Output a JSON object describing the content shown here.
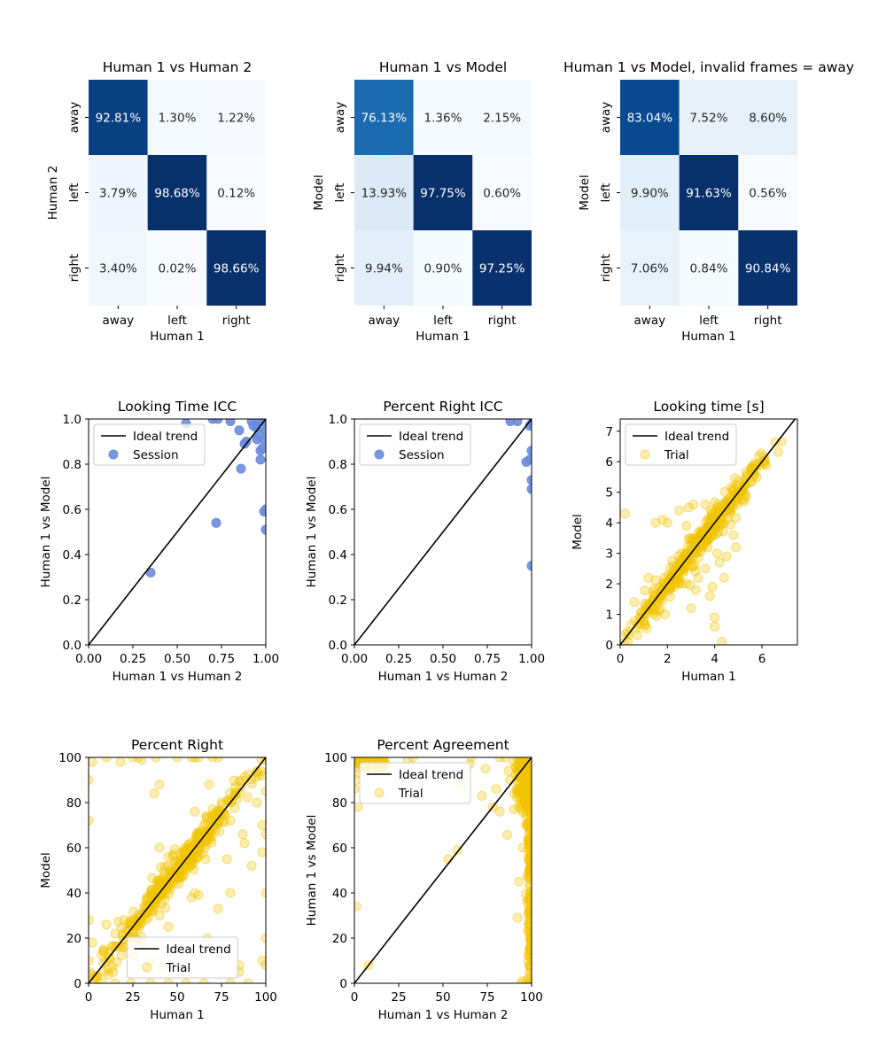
{
  "colors": {
    "blues": [
      "#f7fbff",
      "#deebf7",
      "#c6dbef",
      "#9ecae1",
      "#6baed6",
      "#4292c6",
      "#2171b5",
      "#08519c",
      "#08306b"
    ],
    "session": "#6b8bdc",
    "trial": "#f2c500",
    "ideal": "#000000"
  },
  "chart_data": [
    {
      "type": "heatmap",
      "title": "Human 1 vs Human 2",
      "xlabel": "Human 1",
      "ylabel": "Human 2",
      "x_categories": [
        "away",
        "left",
        "right"
      ],
      "y_categories": [
        "away",
        "left",
        "right"
      ],
      "values": [
        [
          92.81,
          1.3,
          1.22
        ],
        [
          3.79,
          98.68,
          0.12
        ],
        [
          3.4,
          0.02,
          98.66
        ]
      ],
      "labels": [
        [
          "92.81%",
          "1.30%",
          "1.22%"
        ],
        [
          "3.79%",
          "98.68%",
          "0.12%"
        ],
        [
          "3.40%",
          "0.02%",
          "98.66%"
        ]
      ]
    },
    {
      "type": "heatmap",
      "title": "Human 1 vs Model",
      "xlabel": "Human 1",
      "ylabel": "Model",
      "x_categories": [
        "away",
        "left",
        "right"
      ],
      "y_categories": [
        "away",
        "left",
        "right"
      ],
      "values": [
        [
          76.13,
          1.36,
          2.15
        ],
        [
          13.93,
          97.75,
          0.6
        ],
        [
          9.94,
          0.9,
          97.25
        ]
      ],
      "labels": [
        [
          "76.13%",
          "1.36%",
          "2.15%"
        ],
        [
          "13.93%",
          "97.75%",
          "0.60%"
        ],
        [
          "9.94%",
          "0.90%",
          "97.25%"
        ]
      ]
    },
    {
      "type": "heatmap",
      "title": "Human 1 vs Model, invalid frames = away",
      "xlabel": "Human 1",
      "ylabel": "Model",
      "x_categories": [
        "away",
        "left",
        "right"
      ],
      "y_categories": [
        "away",
        "left",
        "right"
      ],
      "values": [
        [
          83.04,
          7.52,
          8.6
        ],
        [
          9.9,
          91.63,
          0.56
        ],
        [
          7.06,
          0.84,
          90.84
        ]
      ],
      "labels": [
        [
          "83.04%",
          "7.52%",
          "8.60%"
        ],
        [
          "9.90%",
          "91.63%",
          "0.56%"
        ],
        [
          "7.06%",
          "0.84%",
          "90.84%"
        ]
      ]
    },
    {
      "type": "scatter",
      "title": "Looking Time ICC",
      "xlabel": "Human 1 vs Human 2",
      "ylabel": "Human 1 vs Model",
      "xlim": [
        0,
        1
      ],
      "ylim": [
        0,
        1
      ],
      "xticks": [
        0,
        0.25,
        0.5,
        0.75,
        1.0
      ],
      "xtick_labels": [
        "0.00",
        "0.25",
        "0.50",
        "0.75",
        "1.00"
      ],
      "yticks": [
        0,
        0.2,
        0.4,
        0.6,
        0.8,
        1.0
      ],
      "ytick_labels": [
        "0.0",
        "0.2",
        "0.4",
        "0.6",
        "0.8",
        "1.0"
      ],
      "legend": [
        "Ideal trend",
        "Session"
      ],
      "legend_loc": "upper-left",
      "marker": "session",
      "alpha": 0.9,
      "points": [
        [
          0.35,
          0.32
        ],
        [
          0.72,
          0.54
        ],
        [
          0.86,
          0.78
        ],
        [
          0.55,
          0.98
        ],
        [
          0.7,
          1.0
        ],
        [
          0.73,
          1.0
        ],
        [
          0.8,
          0.99
        ],
        [
          0.85,
          0.95
        ],
        [
          0.88,
          0.89
        ],
        [
          0.89,
          0.9
        ],
        [
          0.92,
          0.99
        ],
        [
          0.93,
          0.97
        ],
        [
          0.95,
          0.91
        ],
        [
          0.95,
          0.96
        ],
        [
          0.96,
          0.93
        ],
        [
          0.97,
          0.82
        ],
        [
          0.97,
          0.86
        ],
        [
          0.98,
          0.87
        ],
        [
          0.98,
          0.99
        ],
        [
          0.99,
          0.59
        ],
        [
          1.0,
          0.6
        ],
        [
          1.0,
          0.51
        ],
        [
          1.0,
          0.95
        ],
        [
          0.99,
          0.91
        ],
        [
          0.96,
          0.99
        ]
      ]
    },
    {
      "type": "scatter",
      "title": "Percent Right ICC",
      "xlabel": "Human 1 vs Human 2",
      "ylabel": "Human 1 vs Model",
      "xlim": [
        0,
        1
      ],
      "ylim": [
        0,
        1
      ],
      "xticks": [
        0,
        0.25,
        0.5,
        0.75,
        1.0
      ],
      "xtick_labels": [
        "0.00",
        "0.25",
        "0.50",
        "0.75",
        "1.00"
      ],
      "yticks": [
        0,
        0.2,
        0.4,
        0.6,
        0.8,
        1.0
      ],
      "ytick_labels": [
        "0.0",
        "0.2",
        "0.4",
        "0.6",
        "0.8",
        "1.0"
      ],
      "legend": [
        "Ideal trend",
        "Session"
      ],
      "legend_loc": "upper-left",
      "marker": "session",
      "alpha": 0.9,
      "points": [
        [
          0.88,
          0.99
        ],
        [
          0.92,
          0.99
        ],
        [
          0.97,
          0.81
        ],
        [
          0.99,
          0.82
        ],
        [
          1.0,
          0.86
        ],
        [
          1.0,
          0.73
        ],
        [
          1.0,
          0.69
        ],
        [
          1.0,
          0.35
        ],
        [
          0.99,
          0.97
        ],
        [
          1.0,
          0.98
        ]
      ]
    },
    {
      "type": "scatter",
      "title": "Looking time [s]",
      "xlabel": "Human 1",
      "ylabel": "Model",
      "xlim": [
        0,
        7.5
      ],
      "ylim": [
        0,
        7.4
      ],
      "xticks": [
        0,
        2,
        4,
        6
      ],
      "xtick_labels": [
        "0",
        "2",
        "4",
        "6"
      ],
      "yticks": [
        0,
        1,
        2,
        3,
        4,
        5,
        6,
        7
      ],
      "ytick_labels": [
        "0",
        "1",
        "2",
        "3",
        "4",
        "5",
        "6",
        "7"
      ],
      "legend": [
        "Ideal trend",
        "Trial"
      ],
      "legend_loc": "upper-left",
      "marker": "trial",
      "alpha": 0.3,
      "outliers": [
        [
          0.2,
          4.3
        ],
        [
          1.5,
          4.0
        ],
        [
          1.8,
          4.1
        ],
        [
          1.9,
          1.0
        ],
        [
          2.0,
          4.0
        ],
        [
          2.3,
          1.9
        ],
        [
          2.9,
          4.5
        ],
        [
          3.0,
          1.2
        ],
        [
          3.2,
          1.8
        ],
        [
          3.5,
          3.3
        ],
        [
          3.8,
          1.6
        ],
        [
          4.0,
          0.6
        ],
        [
          4.0,
          0.9
        ],
        [
          4.3,
          0.1
        ],
        [
          4.2,
          2.7
        ],
        [
          4.4,
          2.2
        ],
        [
          4.5,
          2.9
        ],
        [
          3.6,
          2.5
        ],
        [
          2.5,
          4.4
        ],
        [
          3.1,
          4.6
        ],
        [
          4.8,
          3.6
        ],
        [
          4.9,
          3.2
        ],
        [
          3.3,
          2.2
        ],
        [
          2.8,
          3.9
        ],
        [
          1.2,
          2.2
        ],
        [
          0.6,
          1.4
        ],
        [
          3.9,
          1.9
        ],
        [
          3.6,
          4.6
        ],
        [
          4.1,
          3.0
        ],
        [
          2.6,
          2.0
        ]
      ],
      "band": {
        "x_range": [
          0.1,
          7.0
        ],
        "spread": 0.25,
        "count": 380,
        "dense_center": 3.5
      }
    },
    {
      "type": "scatter",
      "title": "Percent Right",
      "xlabel": "Human 1",
      "ylabel": "Model",
      "xlim": [
        0,
        100
      ],
      "ylim": [
        0,
        100
      ],
      "xticks": [
        0,
        25,
        50,
        75,
        100
      ],
      "xtick_labels": [
        "0",
        "25",
        "50",
        "75",
        "100"
      ],
      "yticks": [
        0,
        20,
        40,
        60,
        80,
        100
      ],
      "ytick_labels": [
        "0",
        "20",
        "40",
        "60",
        "80",
        "100"
      ],
      "legend": [
        "Ideal trend",
        "Trial"
      ],
      "legend_loc": "lower-center",
      "marker": "trial",
      "alpha": 0.3,
      "outliers": [
        [
          0,
          90
        ],
        [
          0,
          72
        ],
        [
          0,
          28
        ],
        [
          2,
          98
        ],
        [
          10,
          100
        ],
        [
          18,
          98
        ],
        [
          25,
          100
        ],
        [
          28,
          100
        ],
        [
          30,
          99
        ],
        [
          37,
          84
        ],
        [
          38,
          100
        ],
        [
          40,
          88
        ],
        [
          50,
          100
        ],
        [
          58,
          100
        ],
        [
          60,
          100
        ],
        [
          62,
          100
        ],
        [
          70,
          100
        ],
        [
          73,
          100
        ],
        [
          60,
          76
        ],
        [
          70,
          77
        ],
        [
          75,
          80
        ],
        [
          57,
          52
        ],
        [
          68,
          88
        ],
        [
          80,
          72
        ],
        [
          87,
          66
        ],
        [
          88,
          62
        ],
        [
          95,
          80
        ],
        [
          98,
          92
        ],
        [
          100,
          85
        ],
        [
          98,
          70
        ],
        [
          100,
          66
        ],
        [
          98,
          58
        ],
        [
          100,
          40
        ],
        [
          100,
          20
        ],
        [
          98,
          10
        ],
        [
          100,
          8
        ],
        [
          90,
          0
        ],
        [
          80,
          0
        ],
        [
          65,
          0
        ],
        [
          55,
          0
        ],
        [
          45,
          0
        ],
        [
          35,
          0
        ],
        [
          24,
          0
        ],
        [
          15,
          0
        ],
        [
          8,
          0
        ],
        [
          3,
          2
        ],
        [
          5,
          3
        ],
        [
          0,
          10
        ],
        [
          2,
          18
        ],
        [
          62,
          39
        ],
        [
          58,
          38
        ],
        [
          48,
          57
        ],
        [
          45,
          56
        ],
        [
          67,
          20
        ],
        [
          73,
          33
        ],
        [
          85,
          8
        ],
        [
          85,
          5
        ],
        [
          45,
          25
        ],
        [
          40,
          30
        ],
        [
          25,
          12
        ],
        [
          42,
          7
        ],
        [
          30,
          18
        ],
        [
          20,
          28
        ],
        [
          15,
          22
        ],
        [
          10,
          26
        ],
        [
          35,
          10
        ],
        [
          80,
          40
        ],
        [
          100,
          99
        ],
        [
          78,
          55
        ],
        [
          66,
          55
        ],
        [
          92,
          52
        ],
        [
          60,
          40
        ],
        [
          40,
          60
        ],
        [
          42,
          47
        ]
      ],
      "band": {
        "x_range": [
          0,
          100
        ],
        "spread": 3.5,
        "count": 360,
        "dense_center": 50
      }
    },
    {
      "type": "scatter",
      "title": "Percent Agreement",
      "xlabel": "Human 1 vs Human 2",
      "ylabel": "Human 1 vs Model",
      "xlim": [
        0,
        100
      ],
      "ylim": [
        0,
        100
      ],
      "xticks": [
        0,
        25,
        50,
        75,
        100
      ],
      "xtick_labels": [
        "0",
        "25",
        "50",
        "75",
        "100"
      ],
      "yticks": [
        0,
        20,
        40,
        60,
        80,
        100
      ],
      "ytick_labels": [
        "0",
        "20",
        "40",
        "60",
        "80",
        "100"
      ],
      "legend": [
        "Ideal trend",
        "Trial"
      ],
      "legend_loc": "upper-left",
      "marker": "trial",
      "alpha": 0.3,
      "outliers": [
        [
          0,
          100
        ],
        [
          2,
          98
        ],
        [
          5,
          96
        ],
        [
          1,
          90
        ],
        [
          0,
          86
        ],
        [
          2,
          78
        ],
        [
          1,
          34
        ],
        [
          8,
          8
        ],
        [
          12,
          100
        ],
        [
          30,
          99
        ],
        [
          33,
          100
        ],
        [
          53,
          55
        ],
        [
          58,
          59
        ],
        [
          60,
          88
        ],
        [
          65,
          97
        ],
        [
          66,
          100
        ],
        [
          72,
          83
        ],
        [
          74,
          95
        ],
        [
          78,
          78
        ],
        [
          80,
          86
        ],
        [
          82,
          76
        ],
        [
          82,
          100
        ],
        [
          85,
          100
        ],
        [
          87,
          94
        ],
        [
          88,
          90
        ],
        [
          90,
          77
        ],
        [
          92,
          29
        ],
        [
          94,
          0
        ],
        [
          97,
          0
        ],
        [
          100,
          0
        ],
        [
          95,
          1
        ],
        [
          98,
          2
        ],
        [
          93,
          45
        ],
        [
          95,
          60
        ],
        [
          97,
          70
        ],
        [
          96,
          88
        ],
        [
          98,
          96
        ],
        [
          99,
          98
        ],
        [
          100,
          98
        ],
        [
          100,
          92
        ],
        [
          99,
          60
        ],
        [
          100,
          56
        ],
        [
          100,
          40
        ],
        [
          100,
          20
        ],
        [
          100,
          10
        ],
        [
          99,
          30
        ],
        [
          100,
          72
        ],
        [
          98,
          64
        ],
        [
          99,
          50
        ],
        [
          100,
          65
        ]
      ],
      "band": {
        "type": "corner",
        "count": 420
      }
    }
  ]
}
